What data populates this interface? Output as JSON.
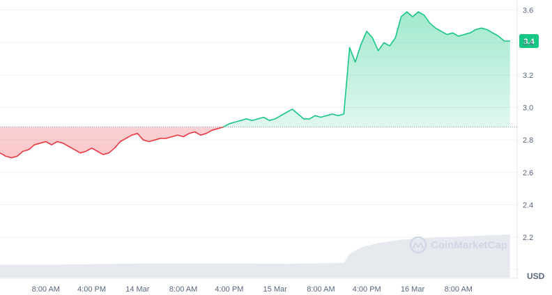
{
  "chart_data": {
    "type": "area",
    "y_ticks": [
      "3.6",
      "3.4",
      "3.2",
      "3.0",
      "2.8",
      "2.6",
      "2.4",
      "2.2"
    ],
    "y_tick_values": [
      3.6,
      3.4,
      3.2,
      3.0,
      2.8,
      2.6,
      2.4,
      2.2
    ],
    "ylim": [
      2.05,
      3.62
    ],
    "x_ticks": [
      "8:00 AM",
      "4:00 PM",
      "14 Mar",
      "8:00 AM",
      "4:00 PM",
      "15 Mar",
      "8:00 AM",
      "4:00 PM",
      "16 Mar",
      "8:00 AM"
    ],
    "x_tick_hours": [
      8,
      16,
      24,
      32,
      40,
      48,
      56,
      64,
      72,
      80
    ],
    "xlim_hours": [
      0,
      90
    ],
    "unit": "USD",
    "baseline": 2.88,
    "current_price_label": "3.4",
    "current_price": 3.41,
    "grid": true,
    "series": [
      {
        "points": [
          [
            0,
            2.72
          ],
          [
            1,
            2.7
          ],
          [
            2,
            2.69
          ],
          [
            3,
            2.7
          ],
          [
            4,
            2.73
          ],
          [
            5,
            2.74
          ],
          [
            6,
            2.77
          ],
          [
            7,
            2.78
          ],
          [
            8,
            2.79
          ],
          [
            9,
            2.77
          ],
          [
            10,
            2.79
          ],
          [
            11,
            2.78
          ],
          [
            12,
            2.76
          ],
          [
            13,
            2.74
          ],
          [
            14,
            2.72
          ],
          [
            15,
            2.73
          ],
          [
            16,
            2.75
          ],
          [
            17,
            2.73
          ],
          [
            18,
            2.71
          ],
          [
            19,
            2.72
          ],
          [
            20,
            2.75
          ],
          [
            21,
            2.79
          ],
          [
            22,
            2.81
          ],
          [
            23,
            2.83
          ],
          [
            24,
            2.84
          ],
          [
            25,
            2.8
          ],
          [
            26,
            2.79
          ],
          [
            27,
            2.8
          ],
          [
            28,
            2.81
          ],
          [
            29,
            2.81
          ],
          [
            30,
            2.82
          ],
          [
            31,
            2.83
          ],
          [
            32,
            2.82
          ],
          [
            33,
            2.84
          ],
          [
            34,
            2.85
          ],
          [
            35,
            2.83
          ],
          [
            36,
            2.84
          ],
          [
            37,
            2.86
          ],
          [
            38,
            2.87
          ],
          [
            39,
            2.88
          ],
          [
            40,
            2.9
          ],
          [
            41,
            2.91
          ],
          [
            42,
            2.92
          ],
          [
            43,
            2.93
          ],
          [
            44,
            2.92
          ],
          [
            45,
            2.93
          ],
          [
            46,
            2.94
          ],
          [
            47,
            2.92
          ],
          [
            48,
            2.93
          ],
          [
            49,
            2.95
          ],
          [
            50,
            2.97
          ],
          [
            51,
            2.99
          ],
          [
            52,
            2.96
          ],
          [
            53,
            2.93
          ],
          [
            54,
            2.93
          ],
          [
            55,
            2.95
          ],
          [
            56,
            2.94
          ],
          [
            57,
            2.95
          ],
          [
            58,
            2.96
          ],
          [
            59,
            2.95
          ],
          [
            60,
            2.96
          ],
          [
            61,
            3.37
          ],
          [
            62,
            3.28
          ],
          [
            63,
            3.39
          ],
          [
            64,
            3.47
          ],
          [
            65,
            3.43
          ],
          [
            66,
            3.35
          ],
          [
            67,
            3.4
          ],
          [
            68,
            3.38
          ],
          [
            69,
            3.43
          ],
          [
            70,
            3.56
          ],
          [
            71,
            3.59
          ],
          [
            72,
            3.56
          ],
          [
            73,
            3.59
          ],
          [
            74,
            3.57
          ],
          [
            75,
            3.52
          ],
          [
            76,
            3.49
          ],
          [
            77,
            3.47
          ],
          [
            78,
            3.45
          ],
          [
            79,
            3.46
          ],
          [
            80,
            3.44
          ],
          [
            81,
            3.45
          ],
          [
            82,
            3.46
          ],
          [
            83,
            3.48
          ],
          [
            84,
            3.49
          ],
          [
            85,
            3.48
          ],
          [
            86,
            3.46
          ],
          [
            87,
            3.44
          ],
          [
            88,
            3.41
          ],
          [
            89,
            3.41
          ]
        ]
      }
    ],
    "volume": [
      [
        0,
        0.3
      ],
      [
        10,
        0.3
      ],
      [
        20,
        0.32
      ],
      [
        30,
        0.33
      ],
      [
        40,
        0.33
      ],
      [
        50,
        0.32
      ],
      [
        60,
        0.34
      ],
      [
        61,
        0.55
      ],
      [
        63,
        0.7
      ],
      [
        66,
        0.8
      ],
      [
        70,
        0.88
      ],
      [
        75,
        0.92
      ],
      [
        80,
        0.95
      ],
      [
        85,
        0.98
      ],
      [
        89,
        1.0
      ]
    ]
  },
  "watermark": {
    "text": "CoinMarketCap"
  },
  "colors": {
    "up": "#16c784",
    "down": "#ea3943",
    "grid": "#eff2f5",
    "tick_text": "#58667e",
    "volume": "#e6e9ee"
  }
}
